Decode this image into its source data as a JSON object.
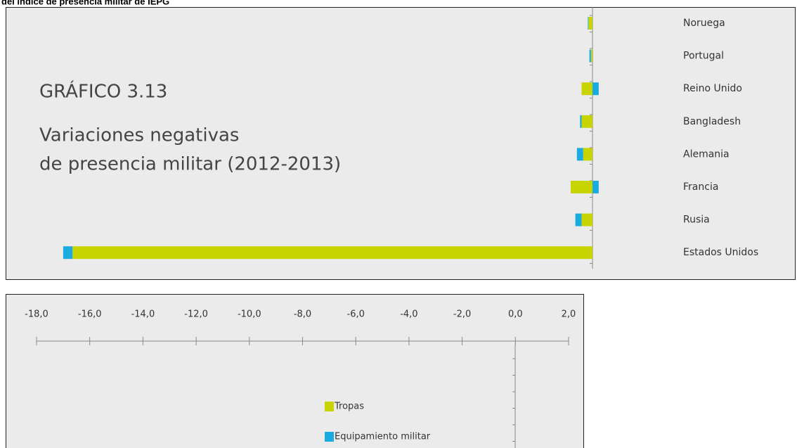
{
  "header": "del índice de presencia militar de IEPG",
  "chart_data": {
    "type": "bar",
    "orientation": "horizontal",
    "stacked": true,
    "title": "GRÁFICO 3.13",
    "subtitle": [
      "Variaciones negativas",
      "de presencia militar (2012-2013)"
    ],
    "categories": [
      "Noruega",
      "Portugal",
      "Reino Unido",
      "Bangladesh",
      "Alemania",
      "Francia",
      "Rusia",
      "Estados Unidos"
    ],
    "series": [
      {
        "name": "Tropas",
        "color": "#c8d400",
        "values": [
          -0.13,
          -0.05,
          -0.35,
          -0.35,
          -0.3,
          -0.7,
          -0.35,
          -16.7
        ]
      },
      {
        "name": "Equipamiento militar",
        "color": "#1aabe0",
        "values": [
          -0.02,
          -0.05,
          0.2,
          -0.05,
          -0.2,
          0.2,
          -0.2,
          -0.3
        ]
      }
    ],
    "xlim": [
      -18,
      2
    ],
    "xticks": [
      {
        "value": -18,
        "label": "-18,0"
      },
      {
        "value": -16,
        "label": "-16,0"
      },
      {
        "value": -14,
        "label": "-14,0"
      },
      {
        "value": -12,
        "label": "-12,0"
      },
      {
        "value": -10,
        "label": "-10,0"
      },
      {
        "value": -8,
        "label": "-8,0"
      },
      {
        "value": -6,
        "label": "-6,0"
      },
      {
        "value": -4,
        "label": "-4,0"
      },
      {
        "value": -2,
        "label": "-2,0"
      },
      {
        "value": 0,
        "label": "0,0"
      },
      {
        "value": 2,
        "label": "2,0"
      }
    ]
  }
}
